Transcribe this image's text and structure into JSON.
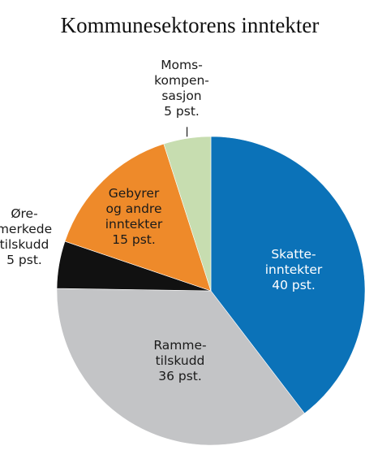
{
  "chart_data": {
    "type": "pie",
    "title": "Kommunesektorens inntekter",
    "slices": [
      {
        "key": "skatt",
        "value": 40,
        "label_lines": [
          "Skatte-",
          "inntekter",
          "40 pst."
        ],
        "color": "#0b72b8",
        "text_color": "#ffffff"
      },
      {
        "key": "ramme",
        "value": 36,
        "label_lines": [
          "Ramme-",
          "tilskudd",
          "36 pst."
        ],
        "color": "#c3c4c6",
        "text_color": "#1a1a1a"
      },
      {
        "key": "oremerkede",
        "value": 5,
        "label_lines": [
          "Øre-",
          "merkede",
          "tilskudd",
          "5 pst."
        ],
        "color": "#111111",
        "text_color": "#1a1a1a"
      },
      {
        "key": "gebyrer",
        "value": 15,
        "label_lines": [
          "Gebyrer",
          "og andre",
          "inntekter",
          "15 pst."
        ],
        "color": "#ee8a2a",
        "text_color": "#1a1a1a"
      },
      {
        "key": "moms",
        "value": 5,
        "label_lines": [
          "Moms-",
          "kompen-",
          "sasjon",
          "5 pst."
        ],
        "color": "#c7ddb0",
        "text_color": "#1a1a1a"
      }
    ]
  }
}
